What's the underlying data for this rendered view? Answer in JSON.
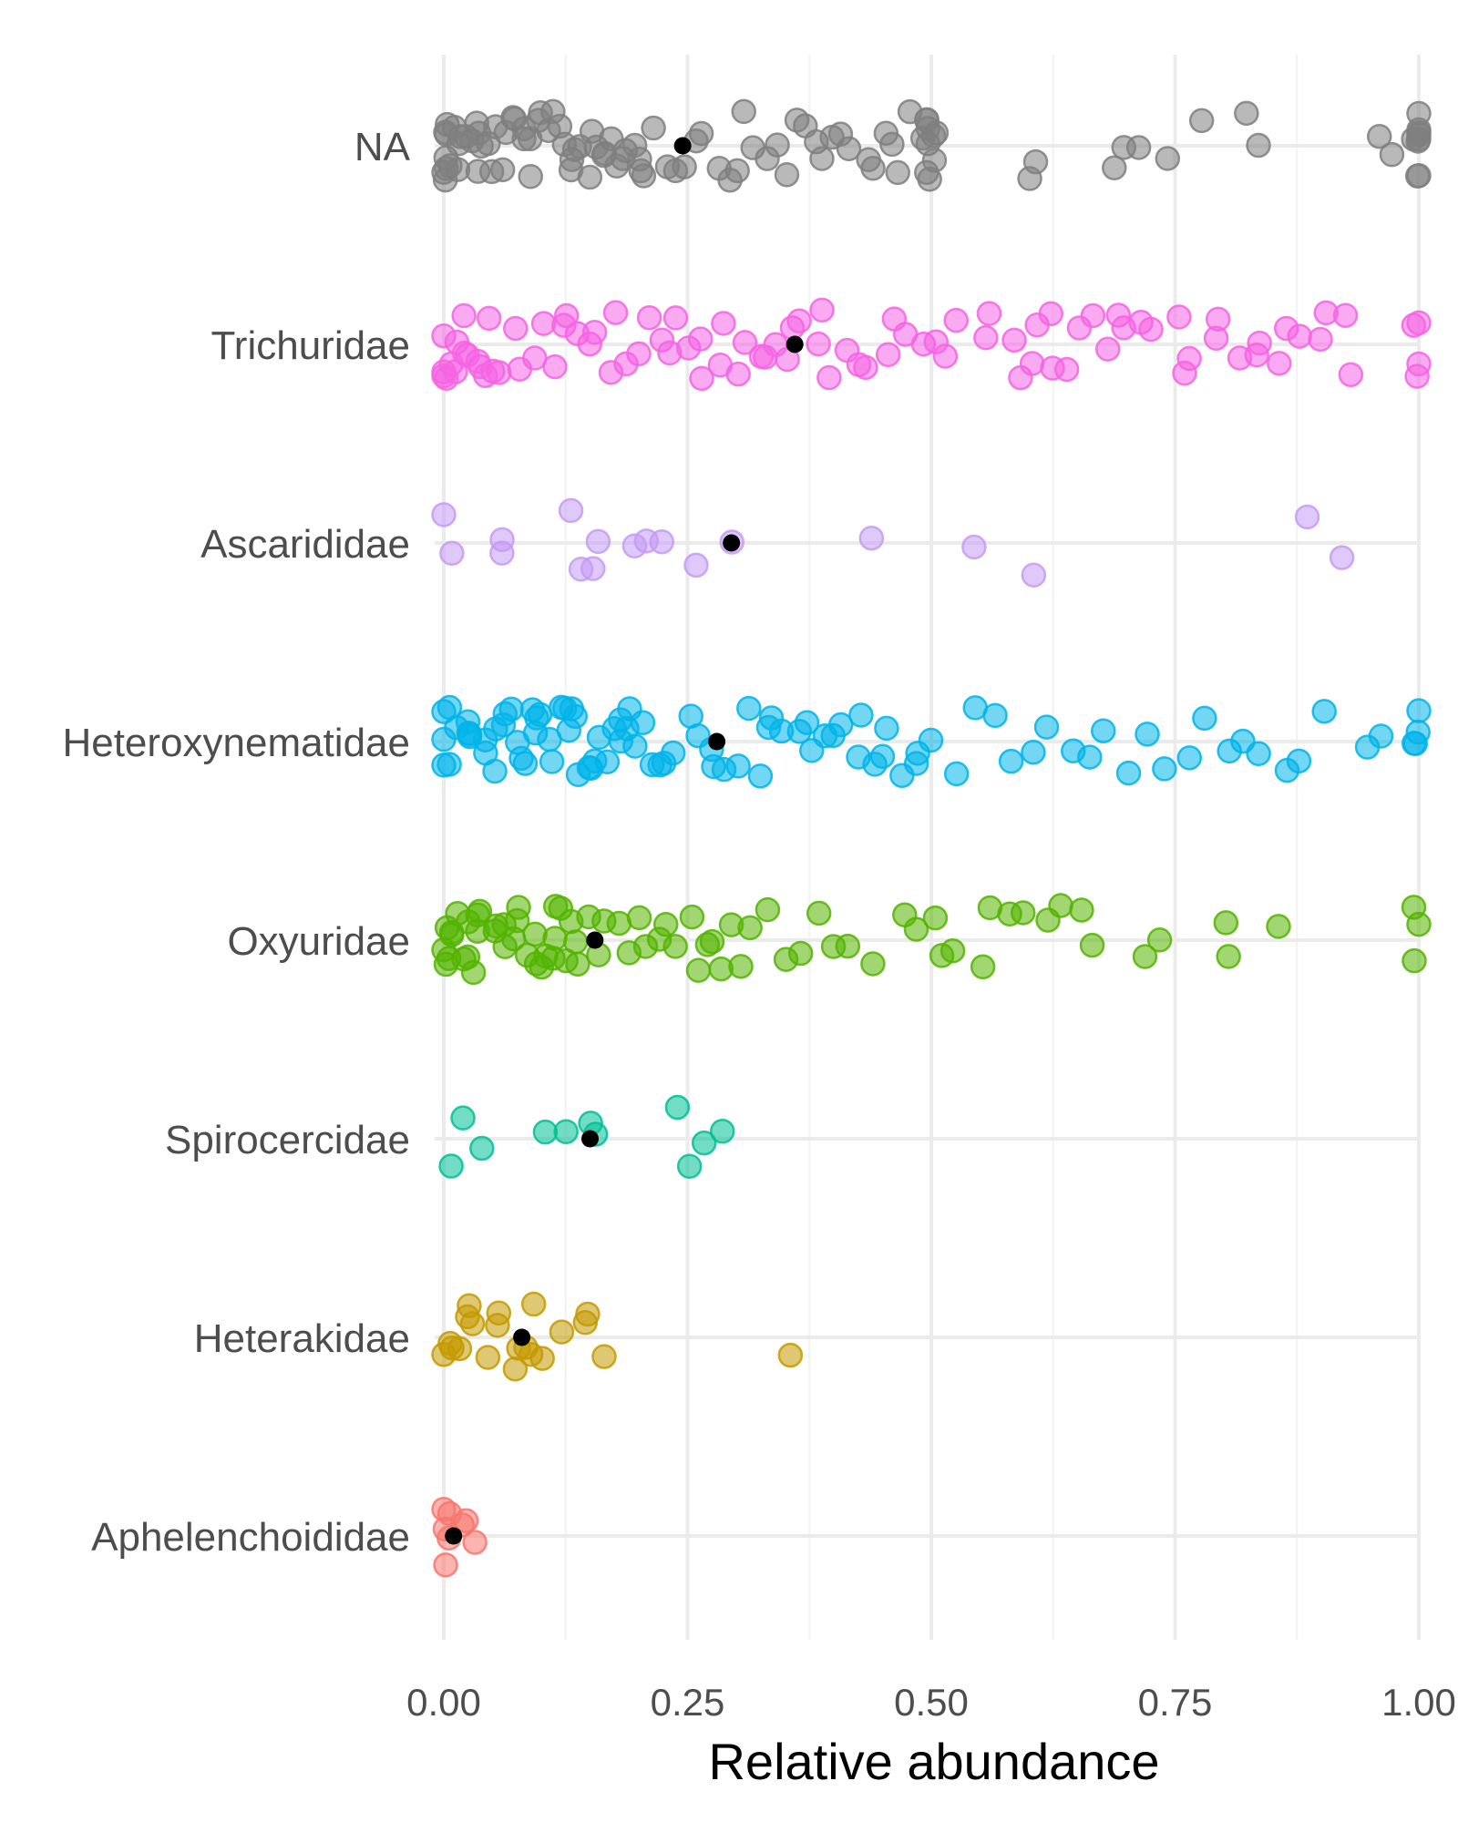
{
  "chart_data": {
    "type": "scatter",
    "xlabel": "Relative abundance",
    "ylabel": "",
    "xlim": [
      0,
      1
    ],
    "x_ticks": [
      "0.00",
      "0.25",
      "0.50",
      "0.75",
      "1.00"
    ],
    "x_tick_values": [
      0,
      0.25,
      0.5,
      0.75,
      1
    ],
    "grid": true,
    "categories": [
      "NA",
      "Trichuridae",
      "Ascarididae",
      "Heteroxynematidae",
      "Oxyuridae",
      "Spirocercidae",
      "Heterakidae",
      "Aphelenchoididae"
    ],
    "series": [
      {
        "category": "NA",
        "color": "#7f7f7f",
        "mean": 0.245,
        "points": [
          0.0,
          0.0,
          0.0,
          0.0,
          0.0,
          0.0,
          0.0,
          0.01,
          0.01,
          0.01,
          0.02,
          0.02,
          0.02,
          0.03,
          0.03,
          0.03,
          0.04,
          0.04,
          0.04,
          0.05,
          0.05,
          0.06,
          0.06,
          0.07,
          0.07,
          0.08,
          0.08,
          0.09,
          0.09,
          0.1,
          0.1,
          0.11,
          0.11,
          0.12,
          0.12,
          0.13,
          0.13,
          0.14,
          0.14,
          0.15,
          0.15,
          0.16,
          0.16,
          0.17,
          0.17,
          0.18,
          0.18,
          0.19,
          0.19,
          0.2,
          0.2,
          0.21,
          0.22,
          0.23,
          0.24,
          0.25,
          0.26,
          0.27,
          0.28,
          0.29,
          0.3,
          0.31,
          0.32,
          0.33,
          0.34,
          0.35,
          0.36,
          0.37,
          0.38,
          0.39,
          0.4,
          0.41,
          0.42,
          0.43,
          0.44,
          0.45,
          0.46,
          0.47,
          0.48,
          0.49,
          0.5,
          0.5,
          0.5,
          0.5,
          0.5,
          0.5,
          0.5,
          0.5,
          0.5,
          0.6,
          0.61,
          0.69,
          0.7,
          0.71,
          0.74,
          0.78,
          0.82,
          0.84,
          0.96,
          0.97,
          1.0,
          1.0,
          1.0,
          1.0,
          1.0,
          1.0,
          1.0,
          1.0,
          1.0
        ]
      },
      {
        "category": "Trichuridae",
        "color": "#f564e3",
        "mean": 0.36,
        "points": [
          0.0,
          0.0,
          0.0,
          0.0,
          0.01,
          0.01,
          0.01,
          0.02,
          0.02,
          0.03,
          0.03,
          0.04,
          0.04,
          0.05,
          0.05,
          0.06,
          0.07,
          0.08,
          0.09,
          0.1,
          0.11,
          0.12,
          0.13,
          0.14,
          0.15,
          0.16,
          0.17,
          0.18,
          0.19,
          0.2,
          0.21,
          0.22,
          0.23,
          0.24,
          0.25,
          0.26,
          0.27,
          0.28,
          0.29,
          0.3,
          0.31,
          0.32,
          0.33,
          0.34,
          0.35,
          0.36,
          0.37,
          0.38,
          0.39,
          0.4,
          0.41,
          0.42,
          0.43,
          0.45,
          0.46,
          0.47,
          0.49,
          0.5,
          0.52,
          0.53,
          0.55,
          0.56,
          0.58,
          0.59,
          0.6,
          0.61,
          0.62,
          0.63,
          0.64,
          0.65,
          0.67,
          0.68,
          0.69,
          0.7,
          0.72,
          0.73,
          0.75,
          0.76,
          0.77,
          0.79,
          0.8,
          0.82,
          0.83,
          0.84,
          0.86,
          0.87,
          0.88,
          0.9,
          0.91,
          0.92,
          0.93,
          1.0,
          1.0,
          1.0,
          1.0
        ]
      },
      {
        "category": "Ascarididae",
        "color": "#c49bf6",
        "mean": 0.295,
        "points": [
          0.0,
          0.01,
          0.06,
          0.06,
          0.13,
          0.14,
          0.15,
          0.16,
          0.2,
          0.21,
          0.22,
          0.26,
          0.29,
          0.44,
          0.54,
          0.6,
          0.88,
          0.92
        ]
      },
      {
        "category": "Heteroxynematidae",
        "color": "#00b4ea",
        "mean": 0.28,
        "points": [
          0.0,
          0.0,
          0.0,
          0.01,
          0.01,
          0.01,
          0.02,
          0.02,
          0.03,
          0.03,
          0.04,
          0.04,
          0.05,
          0.05,
          0.06,
          0.06,
          0.07,
          0.07,
          0.08,
          0.08,
          0.09,
          0.09,
          0.1,
          0.1,
          0.11,
          0.11,
          0.12,
          0.12,
          0.13,
          0.13,
          0.14,
          0.14,
          0.15,
          0.15,
          0.16,
          0.16,
          0.17,
          0.17,
          0.18,
          0.18,
          0.19,
          0.19,
          0.2,
          0.2,
          0.21,
          0.22,
          0.23,
          0.24,
          0.25,
          0.26,
          0.27,
          0.28,
          0.29,
          0.3,
          0.31,
          0.32,
          0.33,
          0.34,
          0.35,
          0.36,
          0.37,
          0.38,
          0.39,
          0.4,
          0.41,
          0.42,
          0.43,
          0.44,
          0.45,
          0.46,
          0.47,
          0.48,
          0.49,
          0.5,
          0.52,
          0.54,
          0.56,
          0.58,
          0.6,
          0.62,
          0.64,
          0.66,
          0.68,
          0.7,
          0.72,
          0.74,
          0.76,
          0.78,
          0.8,
          0.82,
          0.84,
          0.86,
          0.88,
          0.9,
          0.95,
          0.96,
          1.0,
          1.0,
          1.0,
          1.0
        ]
      },
      {
        "category": "Oxyuridae",
        "color": "#53b400",
        "mean": 0.155,
        "points": [
          0.0,
          0.0,
          0.0,
          0.0,
          0.01,
          0.01,
          0.01,
          0.02,
          0.02,
          0.02,
          0.03,
          0.03,
          0.04,
          0.04,
          0.05,
          0.05,
          0.06,
          0.06,
          0.07,
          0.07,
          0.08,
          0.08,
          0.09,
          0.09,
          0.1,
          0.1,
          0.11,
          0.11,
          0.12,
          0.12,
          0.13,
          0.13,
          0.14,
          0.14,
          0.15,
          0.16,
          0.17,
          0.18,
          0.19,
          0.2,
          0.21,
          0.22,
          0.23,
          0.24,
          0.25,
          0.26,
          0.27,
          0.28,
          0.29,
          0.3,
          0.31,
          0.32,
          0.33,
          0.35,
          0.37,
          0.38,
          0.4,
          0.42,
          0.44,
          0.47,
          0.49,
          0.5,
          0.51,
          0.52,
          0.55,
          0.56,
          0.58,
          0.6,
          0.62,
          0.63,
          0.66,
          0.67,
          0.72,
          0.73,
          0.8,
          0.81,
          0.86,
          1.0,
          1.0,
          1.0
        ]
      },
      {
        "category": "Spirocercidae",
        "color": "#00c094",
        "mean": 0.15,
        "points": [
          0.01,
          0.02,
          0.04,
          0.1,
          0.12,
          0.15,
          0.16,
          0.24,
          0.25,
          0.27,
          0.28
        ]
      },
      {
        "category": "Heterakidae",
        "color": "#c49a00",
        "mean": 0.08,
        "points": [
          0.0,
          0.01,
          0.01,
          0.02,
          0.02,
          0.03,
          0.03,
          0.04,
          0.05,
          0.06,
          0.07,
          0.08,
          0.08,
          0.09,
          0.09,
          0.1,
          0.12,
          0.14,
          0.15,
          0.17,
          0.36
        ]
      },
      {
        "category": "Aphelenchoididae",
        "color": "#f8766d",
        "mean": 0.01,
        "points": [
          0.0,
          0.0,
          0.0,
          0.01,
          0.01,
          0.02,
          0.02,
          0.03
        ]
      }
    ],
    "mean_color": "#000000"
  }
}
